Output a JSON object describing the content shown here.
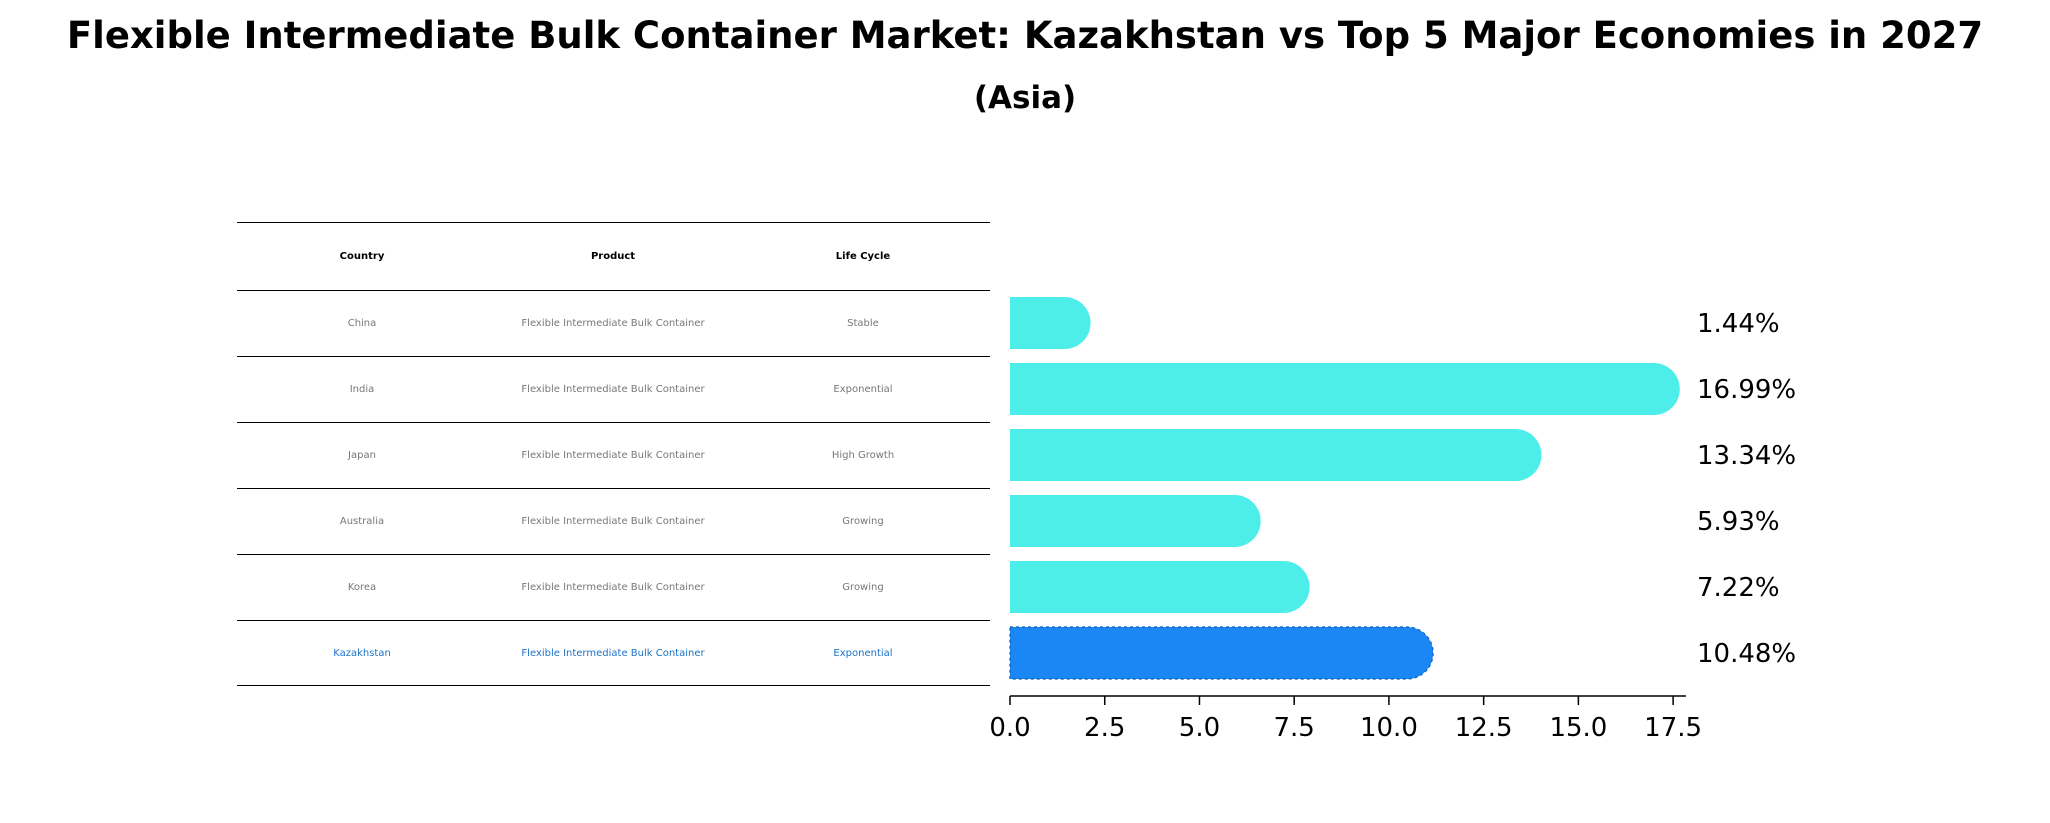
{
  "title": "Flexible Intermediate Bulk Container Market: Kazakhstan vs Top 5 Major Economies in 2027",
  "subtitle": "(Asia)",
  "table": {
    "headers": [
      "Country",
      "Product",
      "Life Cycle"
    ],
    "rows": [
      {
        "country": "China",
        "product": "Flexible Intermediate Bulk Container",
        "life_cycle": "Stable"
      },
      {
        "country": "India",
        "product": "Flexible Intermediate Bulk Container",
        "life_cycle": "Exponential"
      },
      {
        "country": "Japan",
        "product": "Flexible Intermediate Bulk Container",
        "life_cycle": "High Growth"
      },
      {
        "country": "Australia",
        "product": "Flexible Intermediate Bulk Container",
        "life_cycle": "Growing"
      },
      {
        "country": "Korea",
        "product": "Flexible Intermediate Bulk Container",
        "life_cycle": "Growing"
      },
      {
        "country": "Kazakhstan",
        "product": "Flexible Intermediate Bulk Container",
        "life_cycle": "Exponential"
      }
    ]
  },
  "colors": {
    "bar": "#4DEDEA",
    "highlight_bar": "#1A87F5",
    "highlight_text": "#1A73C9",
    "table_text": "#777777"
  },
  "chart_data": {
    "type": "bar",
    "orientation": "horizontal",
    "categories": [
      "China",
      "India",
      "Japan",
      "Australia",
      "Korea",
      "Kazakhstan"
    ],
    "values": [
      1.44,
      16.99,
      13.34,
      5.93,
      7.22,
      10.48
    ],
    "value_labels": [
      "1.44%",
      "16.99%",
      "13.34%",
      "5.93%",
      "7.22%",
      "10.48%"
    ],
    "highlight": "Kazakhstan",
    "xlim": [
      0,
      17.84
    ],
    "xticks": [
      0.0,
      2.5,
      5.0,
      7.5,
      10.0,
      12.5,
      15.0,
      17.5
    ],
    "xtick_labels": [
      "0.0",
      "2.5",
      "5.0",
      "7.5",
      "10.0",
      "12.5",
      "15.0",
      "17.5"
    ],
    "title": "Flexible Intermediate Bulk Container Market: Kazakhstan vs Top 5 Major Economies in 2027",
    "xlabel": "",
    "ylabel": ""
  }
}
